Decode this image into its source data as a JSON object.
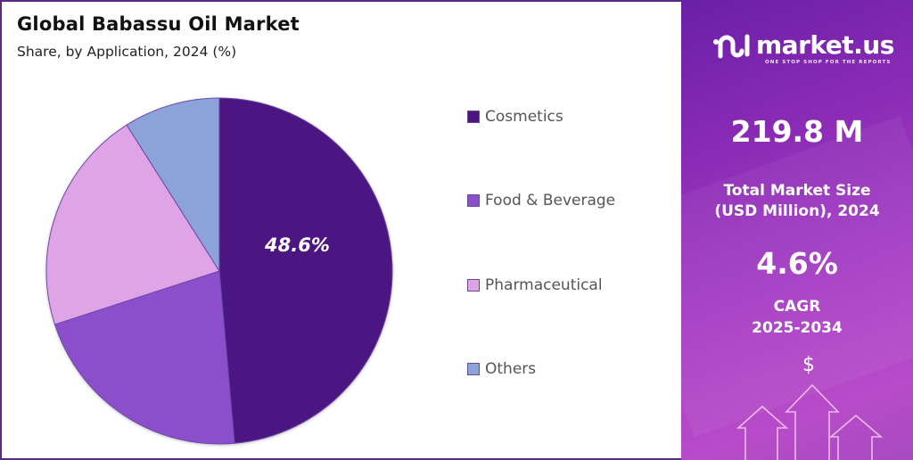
{
  "header": {
    "title": "Global Babassu Oil Market",
    "subtitle": "Share, by Application, 2024 (%)"
  },
  "pie": {
    "highlight_label": "48.6%"
  },
  "legend": [
    {
      "label": "Cosmetics",
      "color": "#4b1481"
    },
    {
      "label": "Food & Beverage",
      "color": "#8b4fcc"
    },
    {
      "label": "Pharmaceutical",
      "color": "#dea4e6"
    },
    {
      "label": "Others",
      "color": "#8ba3d9"
    }
  ],
  "brand": {
    "name": "market.us",
    "tagline": "ONE STOP SHOP FOR THE REPORTS"
  },
  "stats": {
    "market_size_value": "219.8 M",
    "market_size_label_1": "Total Market Size",
    "market_size_label_2": "(USD Million), 2024",
    "cagr_value": "4.6%",
    "cagr_label_1": "CAGR",
    "cagr_label_2": "2025-2034"
  },
  "icons": {
    "dollar": "$"
  },
  "chart_data": {
    "type": "pie",
    "title": "Global Babassu Oil Market",
    "subtitle": "Share, by Application, 2024 (%)",
    "categories": [
      "Cosmetics",
      "Food & Beverage",
      "Pharmaceutical",
      "Others"
    ],
    "values": [
      48.6,
      21.4,
      21.0,
      9.0
    ],
    "colors": [
      "#4b1481",
      "#8b4fcc",
      "#dea4e6",
      "#8ba3d9"
    ],
    "labeled_values": {
      "Cosmetics": 48.6
    },
    "legend_position": "right",
    "start_angle": "12 o'clock, clockwise"
  }
}
